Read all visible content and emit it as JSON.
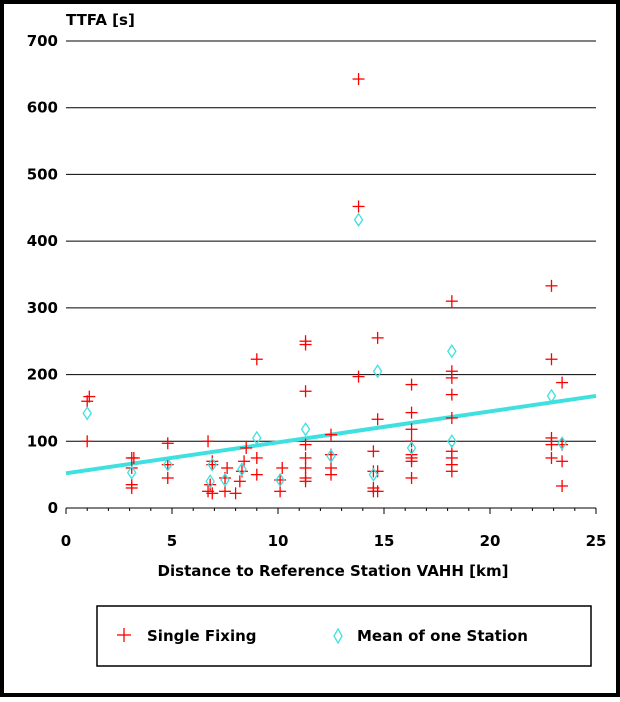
{
  "chart_data": {
    "type": "scatter",
    "ylabel": "TTFA [s]",
    "xlabel": "Distance to Reference Station VAHH [km]",
    "xlim": [
      0,
      25
    ],
    "ylim": [
      0,
      700
    ],
    "xticks": [
      "0",
      "5",
      "10",
      "15",
      "20",
      "25"
    ],
    "yticks": [
      "0",
      "100",
      "200",
      "300",
      "400",
      "500",
      "600",
      "700"
    ],
    "grid": "horizontal",
    "legend_position": "bottom",
    "series": [
      {
        "name": "Single Fixing",
        "marker": "plus",
        "color": "#ff0000",
        "points": [
          [
            1.0,
            100
          ],
          [
            1.0,
            160
          ],
          [
            1.1,
            167
          ],
          [
            3.1,
            30
          ],
          [
            3.1,
            35
          ],
          [
            3.1,
            60
          ],
          [
            3.1,
            75
          ],
          [
            3.2,
            75
          ],
          [
            4.8,
            45
          ],
          [
            4.8,
            65
          ],
          [
            4.8,
            97
          ],
          [
            6.7,
            25
          ],
          [
            6.8,
            35
          ],
          [
            6.9,
            65
          ],
          [
            6.7,
            100
          ],
          [
            6.9,
            70
          ],
          [
            6.9,
            22
          ],
          [
            7.5,
            25
          ],
          [
            7.5,
            45
          ],
          [
            7.6,
            60
          ],
          [
            8.0,
            22
          ],
          [
            8.2,
            40
          ],
          [
            8.3,
            55
          ],
          [
            8.4,
            70
          ],
          [
            8.5,
            90
          ],
          [
            9.0,
            50
          ],
          [
            9.0,
            75
          ],
          [
            9.0,
            223
          ],
          [
            10.1,
            25
          ],
          [
            10.1,
            42
          ],
          [
            10.2,
            60
          ],
          [
            11.3,
            40
          ],
          [
            11.3,
            45
          ],
          [
            11.3,
            60
          ],
          [
            11.3,
            75
          ],
          [
            11.3,
            95
          ],
          [
            11.3,
            175
          ],
          [
            11.3,
            245
          ],
          [
            11.3,
            250
          ],
          [
            12.5,
            50
          ],
          [
            12.5,
            60
          ],
          [
            12.5,
            80
          ],
          [
            12.5,
            110
          ],
          [
            13.8,
            197
          ],
          [
            13.8,
            452
          ],
          [
            13.8,
            643
          ],
          [
            14.5,
            25
          ],
          [
            14.5,
            30
          ],
          [
            14.5,
            55
          ],
          [
            14.5,
            85
          ],
          [
            14.7,
            25
          ],
          [
            14.7,
            55
          ],
          [
            14.7,
            133
          ],
          [
            14.7,
            255
          ],
          [
            16.3,
            45
          ],
          [
            16.3,
            70
          ],
          [
            16.3,
            75
          ],
          [
            16.3,
            80
          ],
          [
            16.3,
            100
          ],
          [
            16.3,
            118
          ],
          [
            16.3,
            143
          ],
          [
            16.3,
            185
          ],
          [
            18.2,
            55
          ],
          [
            18.2,
            65
          ],
          [
            18.2,
            75
          ],
          [
            18.2,
            85
          ],
          [
            18.2,
            135
          ],
          [
            18.2,
            170
          ],
          [
            18.2,
            195
          ],
          [
            18.2,
            205
          ],
          [
            18.2,
            310
          ],
          [
            22.9,
            75
          ],
          [
            22.9,
            95
          ],
          [
            22.9,
            105
          ],
          [
            22.9,
            223
          ],
          [
            22.9,
            333
          ],
          [
            23.4,
            33
          ],
          [
            23.4,
            70
          ],
          [
            23.4,
            95
          ],
          [
            23.4,
            188
          ]
        ]
      },
      {
        "name": "Mean of one Station",
        "marker": "diamond",
        "color": "#40e0e0",
        "points": [
          [
            1.0,
            142
          ],
          [
            3.1,
            53
          ],
          [
            4.8,
            65
          ],
          [
            6.8,
            40
          ],
          [
            6.9,
            65
          ],
          [
            7.5,
            42
          ],
          [
            8.3,
            58
          ],
          [
            9.0,
            105
          ],
          [
            10.1,
            42
          ],
          [
            11.3,
            118
          ],
          [
            12.5,
            78
          ],
          [
            13.8,
            432
          ],
          [
            14.5,
            50
          ],
          [
            14.7,
            205
          ],
          [
            16.3,
            90
          ],
          [
            18.2,
            100
          ],
          [
            18.2,
            235
          ],
          [
            22.9,
            168
          ],
          [
            23.4,
            97
          ]
        ]
      }
    ],
    "trend_line": {
      "color": "#40e0e0",
      "x": [
        0,
        25
      ],
      "y": [
        52,
        168
      ]
    },
    "legend": {
      "single": "Single Fixing",
      "mean": "Mean of one Station"
    }
  }
}
